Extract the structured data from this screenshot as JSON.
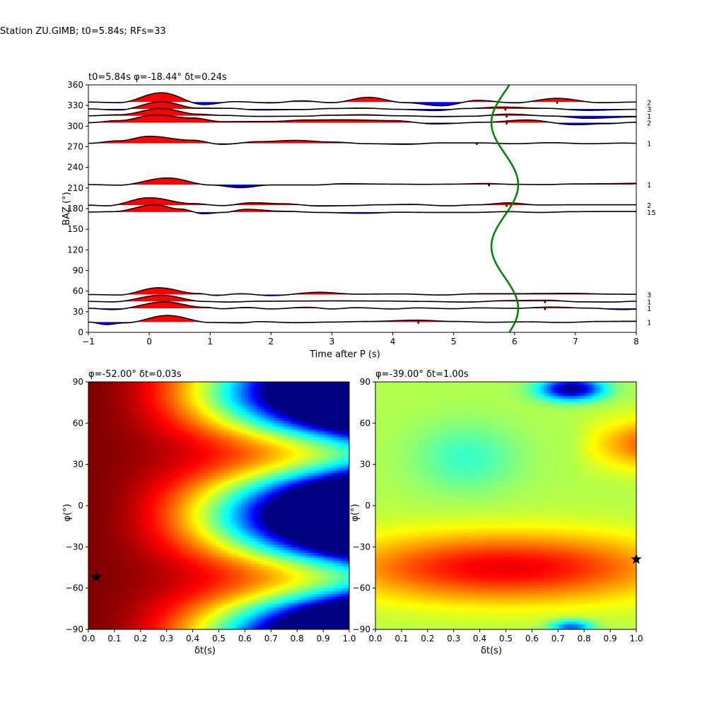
{
  "suptitle": "Station ZU.GIMB; t0=5.84s; RFs=33",
  "chart_data": [
    {
      "type": "line",
      "title": "t0=5.84s φ=-18.44° δt=0.24s",
      "xlabel": "Time after P (s)",
      "ylabel": "BAZ (°)",
      "xlim": [
        -1,
        8
      ],
      "ylim": [
        0,
        360
      ],
      "xticks": [
        "−1",
        "0",
        "1",
        "2",
        "3",
        "4",
        "5",
        "6",
        "7",
        "8"
      ],
      "yticks": [
        "0",
        "30",
        "60",
        "90",
        "120",
        "150",
        "180",
        "210",
        "240",
        "270",
        "300",
        "330",
        "360"
      ],
      "fill_positive": "#ff0000",
      "fill_negative": "#0000ff",
      "trace_color": "#000000",
      "curve_color": "#008000",
      "baz_bins": [
        {
          "baz": 335,
          "count": "2"
        },
        {
          "baz": 325,
          "count": "3"
        },
        {
          "baz": 315,
          "count": "1"
        },
        {
          "baz": 305,
          "count": "2"
        },
        {
          "baz": 275,
          "count": "1"
        },
        {
          "baz": 215,
          "count": "1"
        },
        {
          "baz": 185,
          "count": "2"
        },
        {
          "baz": 175,
          "count": "15"
        },
        {
          "baz": 55,
          "count": "3"
        },
        {
          "baz": 45,
          "count": "1"
        },
        {
          "baz": 35,
          "count": "1"
        },
        {
          "baz": 15,
          "count": "1"
        }
      ],
      "traces": [
        {
          "baz": 335,
          "points": [
            [
              -1,
              0
            ],
            [
              -0.5,
              -0.3
            ],
            [
              0.2,
              4.5
            ],
            [
              0.9,
              -1.2
            ],
            [
              1.4,
              0.2
            ],
            [
              2,
              -0.4
            ],
            [
              2.5,
              0.6
            ],
            [
              3,
              -0.3
            ],
            [
              3.6,
              2.3
            ],
            [
              4.2,
              -0.3
            ],
            [
              4.8,
              -1.8
            ],
            [
              5.4,
              0.8
            ],
            [
              6,
              -0.4
            ],
            [
              6.7,
              1.8
            ],
            [
              7.4,
              -0.3
            ],
            [
              8,
              0
            ]
          ]
        },
        {
          "baz": 325,
          "points": [
            [
              -1,
              0
            ],
            [
              -0.5,
              -0.5
            ],
            [
              0.2,
              3.5
            ],
            [
              0.8,
              0.4
            ],
            [
              1.3,
              0.3
            ],
            [
              1.8,
              -0.5
            ],
            [
              2.5,
              -0.3
            ],
            [
              3,
              0.2
            ],
            [
              3.5,
              0.4
            ],
            [
              4.1,
              -0.2
            ],
            [
              4.7,
              -0.8
            ],
            [
              5.2,
              0.2
            ],
            [
              5.8,
              0.9
            ],
            [
              6.5,
              0.3
            ],
            [
              7.2,
              -0.7
            ],
            [
              8,
              -0.2
            ]
          ]
        },
        {
          "baz": 315,
          "points": [
            [
              -1,
              0
            ],
            [
              -0.5,
              0.5
            ],
            [
              0.2,
              3.5
            ],
            [
              0.8,
              0.8
            ],
            [
              1.2,
              0.2
            ],
            [
              1.8,
              -0.3
            ],
            [
              2.5,
              -0.2
            ],
            [
              3,
              0.3
            ],
            [
              3.5,
              0.5
            ],
            [
              4.1,
              0.0
            ],
            [
              4.8,
              -0.4
            ],
            [
              5.3,
              -0.2
            ],
            [
              5.9,
              0.8
            ],
            [
              6.6,
              -0.1
            ],
            [
              7.2,
              -1.2
            ],
            [
              8,
              -0.5
            ]
          ]
        },
        {
          "baz": 305,
          "points": [
            [
              -1,
              0
            ],
            [
              -0.5,
              1.0
            ],
            [
              0.1,
              3.7
            ],
            [
              0.7,
              2.3
            ],
            [
              1.2,
              0.5
            ],
            [
              2,
              0.6
            ],
            [
              2.6,
              1.3
            ],
            [
              3.2,
              1.4
            ],
            [
              4,
              1.0
            ],
            [
              4.7,
              -0.6
            ],
            [
              5.5,
              0.2
            ],
            [
              6.2,
              1.3
            ],
            [
              7,
              -1.0
            ],
            [
              7.5,
              -0.5
            ],
            [
              8,
              0.2
            ]
          ]
        },
        {
          "baz": 275,
          "points": [
            [
              -1,
              0
            ],
            [
              -0.5,
              1.2
            ],
            [
              0,
              3.4
            ],
            [
              0.7,
              1.5
            ],
            [
              1.2,
              -0.5
            ],
            [
              1.8,
              0.8
            ],
            [
              2.4,
              1.4
            ],
            [
              3,
              0.6
            ],
            [
              3.6,
              -0.2
            ],
            [
              4.2,
              -0.5
            ],
            [
              4.8,
              0.2
            ],
            [
              5.4,
              0.2
            ],
            [
              6,
              -0.2
            ],
            [
              6.6,
              0.3
            ],
            [
              7.2,
              -0.2
            ],
            [
              7.8,
              0.1
            ],
            [
              8,
              0
            ]
          ]
        },
        {
          "baz": 215,
          "points": [
            [
              -1,
              0
            ],
            [
              -0.5,
              -0.3
            ],
            [
              0.3,
              3.2
            ],
            [
              1,
              -0.2
            ],
            [
              1.5,
              -1.5
            ],
            [
              2,
              -0.2
            ],
            [
              2.7,
              -0.2
            ],
            [
              3.2,
              0.4
            ],
            [
              4,
              0.2
            ],
            [
              4.5,
              0.1
            ],
            [
              5,
              0.2
            ],
            [
              5.5,
              0.5
            ],
            [
              6,
              0.1
            ],
            [
              6.5,
              0.0
            ],
            [
              7,
              0.3
            ],
            [
              7.5,
              0.4
            ],
            [
              8,
              0.6
            ]
          ]
        },
        {
          "baz": 185,
          "points": [
            [
              -1,
              0
            ],
            [
              -0.7,
              -0.3
            ],
            [
              0.0,
              3.6
            ],
            [
              0.7,
              0.8
            ],
            [
              1.2,
              -0.2
            ],
            [
              1.7,
              1.2
            ],
            [
              2.2,
              0.7
            ],
            [
              2.8,
              -0.4
            ],
            [
              3.3,
              -0.2
            ],
            [
              3.8,
              0.2
            ],
            [
              4.3,
              0.4
            ],
            [
              4.9,
              -0.3
            ],
            [
              5.4,
              0.2
            ],
            [
              5.9,
              1.1
            ],
            [
              6.4,
              0.1
            ],
            [
              7,
              0.2
            ],
            [
              7.5,
              0.2
            ],
            [
              8,
              0.2
            ]
          ]
        },
        {
          "baz": 175,
          "points": [
            [
              -1,
              0
            ],
            [
              -0.6,
              0.2
            ],
            [
              0.1,
              3.5
            ],
            [
              0.5,
              1.5
            ],
            [
              0.9,
              -0.8
            ],
            [
              1.2,
              -0.2
            ],
            [
              1.6,
              1.3
            ],
            [
              2.2,
              0.4
            ],
            [
              2.8,
              -0.2
            ],
            [
              3.5,
              -0.6
            ],
            [
              4.1,
              -0.1
            ],
            [
              4.7,
              -0.2
            ],
            [
              5.3,
              -0.2
            ],
            [
              5.9,
              0.2
            ],
            [
              6.4,
              -0.2
            ],
            [
              7,
              0.2
            ],
            [
              7.5,
              0.3
            ],
            [
              8,
              0.3
            ]
          ]
        },
        {
          "baz": 55,
          "points": [
            [
              -1,
              0
            ],
            [
              -0.5,
              -0.2
            ],
            [
              0.15,
              3.3
            ],
            [
              0.8,
              0.5
            ],
            [
              1.1,
              -0.4
            ],
            [
              1.5,
              0.4
            ],
            [
              2,
              -0.5
            ],
            [
              2.8,
              1.1
            ],
            [
              3.4,
              0.2
            ],
            [
              4.1,
              0.3
            ],
            [
              4.8,
              -0.2
            ],
            [
              5.4,
              0.4
            ],
            [
              6,
              0.4
            ],
            [
              6.4,
              0.5
            ],
            [
              6.9,
              0.6
            ],
            [
              7.6,
              0.2
            ],
            [
              8,
              0.1
            ]
          ]
        },
        {
          "baz": 45,
          "points": [
            [
              -1,
              0
            ],
            [
              -0.6,
              -0.2
            ],
            [
              0.2,
              3.0
            ],
            [
              0.9,
              0.0
            ],
            [
              1.3,
              -0.3
            ],
            [
              1.8,
              0.1
            ],
            [
              2.5,
              0.2
            ],
            [
              3,
              0.3
            ],
            [
              3.8,
              0.2
            ],
            [
              4.5,
              0.0
            ],
            [
              5.2,
              -0.3
            ],
            [
              5.9,
              0.4
            ],
            [
              6.5,
              0.6
            ],
            [
              7.1,
              -0.2
            ],
            [
              7.6,
              -0.3
            ],
            [
              8,
              0.1
            ]
          ]
        },
        {
          "baz": 35,
          "points": [
            [
              -1,
              0
            ],
            [
              -0.6,
              -0.6
            ],
            [
              0.25,
              3.1
            ],
            [
              0.9,
              0.5
            ],
            [
              1.2,
              -0.2
            ],
            [
              1.6,
              0.4
            ],
            [
              2,
              -0.3
            ],
            [
              2.6,
              0.5
            ],
            [
              3,
              -0.3
            ],
            [
              3.4,
              0.3
            ],
            [
              4,
              -0.3
            ],
            [
              4.4,
              0.2
            ],
            [
              5,
              -0.2
            ],
            [
              5.4,
              0.2
            ],
            [
              6,
              0.0
            ],
            [
              6.6,
              0.6
            ],
            [
              7.2,
              0.1
            ],
            [
              7.8,
              -0.6
            ],
            [
              8,
              -0.4
            ]
          ]
        },
        {
          "baz": 15,
          "points": [
            [
              -1,
              0
            ],
            [
              -0.7,
              -1.2
            ],
            [
              -0.4,
              -0.4
            ],
            [
              0.3,
              3.2
            ],
            [
              1.0,
              -0.2
            ],
            [
              1.5,
              -0.4
            ],
            [
              1.8,
              0.2
            ],
            [
              2.4,
              -0.3
            ],
            [
              3,
              0.0
            ],
            [
              3.6,
              0.3
            ],
            [
              4.4,
              0.9
            ],
            [
              5,
              0.3
            ],
            [
              5.6,
              -0.1
            ],
            [
              6.2,
              0.1
            ],
            [
              6.8,
              -0.2
            ],
            [
              7.4,
              0.3
            ],
            [
              8,
              0.4
            ]
          ]
        }
      ],
      "markers": [
        {
          "baz": 335,
          "time": 6.7
        },
        {
          "baz": 325,
          "time": 5.85
        },
        {
          "baz": 315,
          "time": 5.87
        },
        {
          "baz": 305,
          "time": 5.87
        },
        {
          "baz": 275,
          "time": 5.38
        },
        {
          "baz": 215,
          "time": 5.58
        },
        {
          "baz": 185,
          "time": 5.87
        },
        {
          "baz": 175,
          "time": 5.87
        },
        {
          "baz": 45,
          "time": 6.5
        },
        {
          "baz": 35,
          "time": 6.5
        },
        {
          "baz": 15,
          "time": 4.42
        }
      ],
      "predicted_curve": {
        "t0": 5.84,
        "amplitude": 0.22,
        "cycles_per_360": 2
      }
    },
    {
      "type": "heatmap",
      "title": "φ=-52.00° δt=0.03s",
      "xlabel": "δt(s)",
      "ylabel": "φ(°)",
      "xlim": [
        0.0,
        1.0
      ],
      "ylim": [
        -90,
        90
      ],
      "xticks": [
        "0.0",
        "0.1",
        "0.2",
        "0.3",
        "0.4",
        "0.5",
        "0.6",
        "0.7",
        "0.8",
        "0.9",
        "1.0"
      ],
      "yticks": [
        "−90",
        "−60",
        "−30",
        "0",
        "30",
        "60",
        "90"
      ],
      "colormap": "jet",
      "best": {
        "dt": 0.03,
        "phi": -52.0
      }
    },
    {
      "type": "heatmap",
      "title": "φ=-39.00° δt=1.00s",
      "xlabel": "δt(s)",
      "ylabel": "φ(°)",
      "xlim": [
        0.0,
        1.0
      ],
      "ylim": [
        -90,
        90
      ],
      "xticks": [
        "0.0",
        "0.1",
        "0.2",
        "0.3",
        "0.4",
        "0.5",
        "0.6",
        "0.7",
        "0.8",
        "0.9",
        "1.0"
      ],
      "yticks": [
        "−90",
        "−60",
        "−30",
        "0",
        "30",
        "60",
        "90"
      ],
      "colormap": "jet",
      "best": {
        "dt": 1.0,
        "phi": -39.0
      }
    }
  ]
}
